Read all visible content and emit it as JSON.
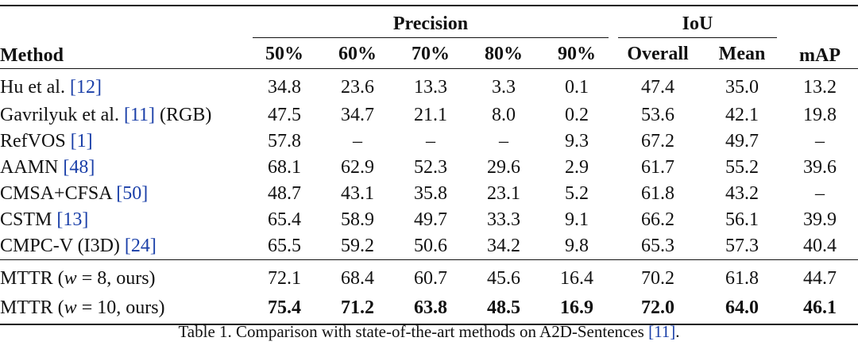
{
  "table": {
    "headers": {
      "method": "Method",
      "precision": "Precision",
      "iou": "IoU",
      "map": "mAP",
      "precision_cols": [
        "50%",
        "60%",
        "70%",
        "80%",
        "90%"
      ],
      "iou_cols": [
        "Overall",
        "Mean"
      ]
    },
    "rows": [
      {
        "name": "Hu et al. ",
        "cite": "[12]",
        "suffix": "",
        "values": [
          "34.8",
          "23.6",
          "13.3",
          "3.3",
          "0.1",
          "47.4",
          "35.0",
          "13.2"
        ]
      },
      {
        "name": "Gavrilyuk et al. ",
        "cite": "[11]",
        "suffix": " (RGB)",
        "values": [
          "47.5",
          "34.7",
          "21.1",
          "8.0",
          "0.2",
          "53.6",
          "42.1",
          "19.8"
        ]
      },
      {
        "name": "RefVOS ",
        "cite": "[1]",
        "suffix": "",
        "values": [
          "57.8",
          "–",
          "–",
          "–",
          "9.3",
          "67.2",
          "49.7",
          "–"
        ]
      },
      {
        "name": "AAMN ",
        "cite": "[48]",
        "suffix": "",
        "values": [
          "68.1",
          "62.9",
          "52.3",
          "29.6",
          "2.9",
          "61.7",
          "55.2",
          "39.6"
        ]
      },
      {
        "name": "CMSA+CFSA ",
        "cite": "[50]",
        "suffix": "",
        "values": [
          "48.7",
          "43.1",
          "35.8",
          "23.1",
          "5.2",
          "61.8",
          "43.2",
          "–"
        ]
      },
      {
        "name": "CSTM ",
        "cite": "[13]",
        "suffix": "",
        "values": [
          "65.4",
          "58.9",
          "49.7",
          "33.3",
          "9.1",
          "66.2",
          "56.1",
          "39.9"
        ]
      },
      {
        "name": "CMPC-V (I3D) ",
        "cite": "[24]",
        "suffix": "",
        "values": [
          "65.5",
          "59.2",
          "50.6",
          "34.2",
          "9.8",
          "65.3",
          "57.3",
          "40.4"
        ]
      }
    ],
    "ours": [
      {
        "prefix": "MTTR (",
        "var": "w",
        "eq": " = 8, ours)",
        "values": [
          "72.1",
          "68.4",
          "60.7",
          "45.6",
          "16.4",
          "70.2",
          "61.8",
          "44.7"
        ]
      },
      {
        "prefix": "MTTR (",
        "var": "w",
        "eq": " = 10, ours)",
        "values": [
          "75.4",
          "71.2",
          "63.8",
          "48.5",
          "16.9",
          "72.0",
          "64.0",
          "46.1"
        ]
      }
    ]
  },
  "caption": {
    "text": "Table 1. Comparison with state-of-the-art methods on A2D-Sentences ",
    "cite": "[11]",
    "end": "."
  },
  "colors": {
    "citation": "#1a3fa8",
    "text": "#111111"
  }
}
